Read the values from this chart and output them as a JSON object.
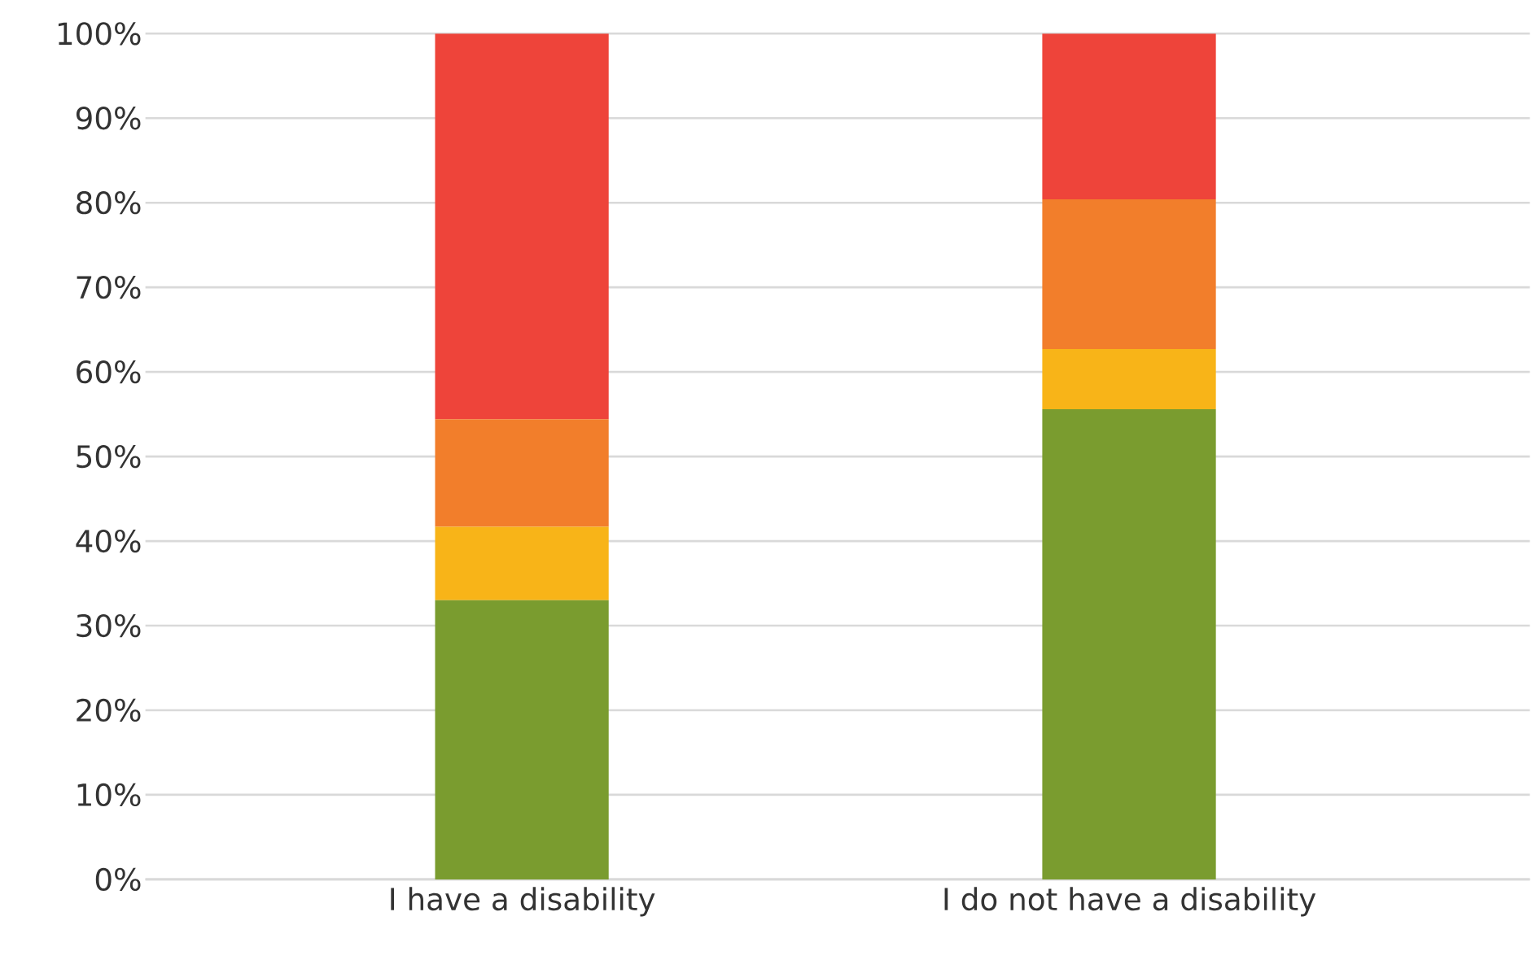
{
  "chart_data": {
    "type": "bar",
    "stacked": true,
    "categories": [
      "I have a disability",
      "I do not have a disability"
    ],
    "series": [
      {
        "color": "#7a9c2f",
        "values": [
          33.0,
          55.6
        ]
      },
      {
        "color": "#f8b418",
        "values": [
          8.7,
          7.1
        ]
      },
      {
        "color": "#f27e2b",
        "values": [
          12.7,
          17.7
        ]
      },
      {
        "color": "#ee443a",
        "values": [
          45.6,
          19.6
        ]
      }
    ],
    "ylim": [
      0,
      100
    ],
    "yticks": [
      {
        "value": 0,
        "label": "0%"
      },
      {
        "value": 10,
        "label": "10%"
      },
      {
        "value": 20,
        "label": "20%"
      },
      {
        "value": 30,
        "label": "30%"
      },
      {
        "value": 40,
        "label": "40%"
      },
      {
        "value": 50,
        "label": "50%"
      },
      {
        "value": 60,
        "label": "60%"
      },
      {
        "value": 70,
        "label": "70%"
      },
      {
        "value": 80,
        "label": "80%"
      },
      {
        "value": 90,
        "label": "90%"
      },
      {
        "value": 100,
        "label": "100%"
      }
    ],
    "grid": "y"
  }
}
